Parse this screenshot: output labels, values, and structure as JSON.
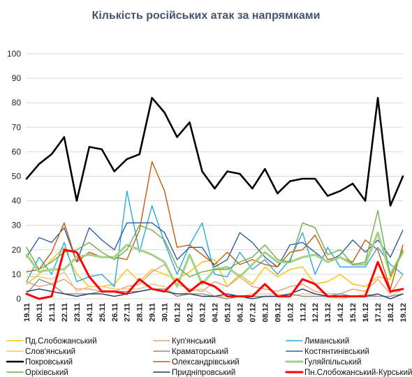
{
  "chart_data": {
    "type": "line",
    "title": "Кількість російських атак за напрямками",
    "xlabel": "",
    "ylabel": "",
    "ylim": [
      0,
      100
    ],
    "yticks": [
      0,
      10,
      20,
      30,
      40,
      50,
      60,
      70,
      80,
      90,
      100
    ],
    "grid": true,
    "legend_position": "bottom",
    "categories": [
      "19.11",
      "20.11",
      "21.11",
      "22.11",
      "23.11",
      "24.11",
      "25.11",
      "26.11",
      "27.11",
      "28.11",
      "29.11",
      "30.11",
      "01.12",
      "02.12",
      "03.12",
      "04.12",
      "05.12",
      "06.12",
      "07.12",
      "08.12",
      "09.12",
      "10.12",
      "11.12",
      "12.12",
      "13.12",
      "14.12",
      "15.12",
      "16.12",
      "17.12",
      "18.12",
      "19.12"
    ],
    "series": [
      {
        "name": "Пд.Слобожанський",
        "color": "#ffc000",
        "width": 1.4,
        "values": [
          6,
          10,
          16,
          21,
          10,
          5,
          5,
          6,
          12,
          7,
          12,
          10,
          8,
          11,
          15,
          16,
          5,
          10,
          6,
          13,
          9,
          12,
          13,
          6,
          7,
          10,
          6,
          5,
          9,
          8,
          20
        ]
      },
      {
        "name": "Куп'янський",
        "color": "#e8a07a",
        "width": 1.4,
        "values": [
          7,
          5,
          6,
          8,
          4,
          4,
          3,
          3,
          5,
          6,
          11,
          14,
          6,
          4,
          3,
          7,
          5,
          9,
          5,
          4,
          3,
          5,
          6,
          3,
          2,
          2,
          4,
          3,
          8,
          2,
          10
        ]
      },
      {
        "name": "Лиманський",
        "color": "#2aa8e0",
        "width": 1.4,
        "values": [
          7,
          17,
          10,
          23,
          7,
          9,
          10,
          5,
          44,
          19,
          38,
          23,
          10,
          22,
          31,
          10,
          9,
          19,
          12,
          16,
          10,
          16,
          27,
          10,
          21,
          13,
          13,
          13,
          21,
          14,
          10
        ]
      },
      {
        "name": "Слов'янський",
        "color": "#f0c27a",
        "width": 1.4,
        "values": [
          9,
          9,
          8,
          11,
          3,
          5,
          5,
          4,
          4,
          4,
          6,
          5,
          1,
          3,
          4,
          1,
          1,
          1,
          2,
          2,
          2,
          1,
          2,
          2,
          1,
          0,
          1,
          2,
          1,
          1,
          4
        ]
      },
      {
        "name": "Краматорський",
        "color": "#8c8c8c",
        "width": 1.4,
        "values": [
          2,
          8,
          6,
          2,
          2,
          2,
          3,
          3,
          3,
          3,
          4,
          4,
          1,
          2,
          2,
          1,
          0,
          1,
          1,
          1,
          1,
          2,
          1,
          1,
          1,
          2,
          1,
          1,
          1,
          1,
          2
        ]
      },
      {
        "name": "Костянтинівський",
        "color": "#2e5fa0",
        "width": 1.4,
        "values": [
          17,
          25,
          23,
          29,
          15,
          29,
          24,
          20,
          31,
          31,
          31,
          27,
          16,
          21,
          21,
          13,
          16,
          27,
          23,
          17,
          13,
          22,
          23,
          19,
          15,
          18,
          24,
          19,
          24,
          17,
          28
        ]
      },
      {
        "name": "Покровський",
        "color": "#000000",
        "width": 2.6,
        "values": [
          49,
          55,
          59,
          66,
          40,
          62,
          61,
          52,
          57,
          59,
          82,
          76,
          66,
          72,
          52,
          45,
          52,
          51,
          45,
          53,
          43,
          48,
          49,
          49,
          42,
          44,
          47,
          40,
          82,
          38,
          50
        ]
      },
      {
        "name": "Олександрівський",
        "color": "#c55a11",
        "width": 1.4,
        "values": [
          11,
          12,
          19,
          31,
          15,
          19,
          17,
          17,
          16,
          28,
          56,
          44,
          21,
          22,
          18,
          14,
          19,
          14,
          16,
          14,
          13,
          19,
          20,
          26,
          16,
          17,
          15,
          24,
          20,
          4,
          22
        ]
      },
      {
        "name": "Гуляйпільський",
        "color": "#a9d18e",
        "width": 3.2,
        "values": [
          18,
          11,
          12,
          12,
          17,
          18,
          17,
          17,
          22,
          20,
          18,
          15,
          5,
          18,
          6,
          12,
          13,
          9,
          14,
          19,
          15,
          15,
          17,
          18,
          15,
          17,
          14,
          14,
          27,
          10,
          19
        ]
      },
      {
        "name": "Оріхівський",
        "color": "#70ad47",
        "width": 1.4,
        "values": [
          21,
          12,
          15,
          19,
          20,
          23,
          19,
          16,
          20,
          30,
          28,
          24,
          13,
          9,
          11,
          12,
          12,
          15,
          17,
          22,
          16,
          15,
          31,
          29,
          18,
          20,
          14,
          15,
          36,
          9,
          20
        ]
      },
      {
        "name": "Придніпровський",
        "color": "#1f3864",
        "width": 1.4,
        "values": [
          3,
          4,
          3,
          2,
          1,
          2,
          2,
          1,
          2,
          3,
          4,
          3,
          2,
          2,
          1,
          1,
          2,
          1,
          0,
          1,
          1,
          2,
          4,
          2,
          1,
          1,
          1,
          1,
          2,
          0,
          2
        ]
      },
      {
        "name": "Пн.Слобожанський-Курський",
        "color": "#ff0000",
        "width": 3.0,
        "values": [
          2,
          0,
          1,
          20,
          19,
          9,
          3,
          3,
          2,
          8,
          4,
          3,
          8,
          3,
          7,
          5,
          1,
          1,
          1,
          6,
          1,
          1,
          8,
          6,
          1,
          1,
          1,
          1,
          15,
          3,
          4
        ]
      }
    ]
  }
}
